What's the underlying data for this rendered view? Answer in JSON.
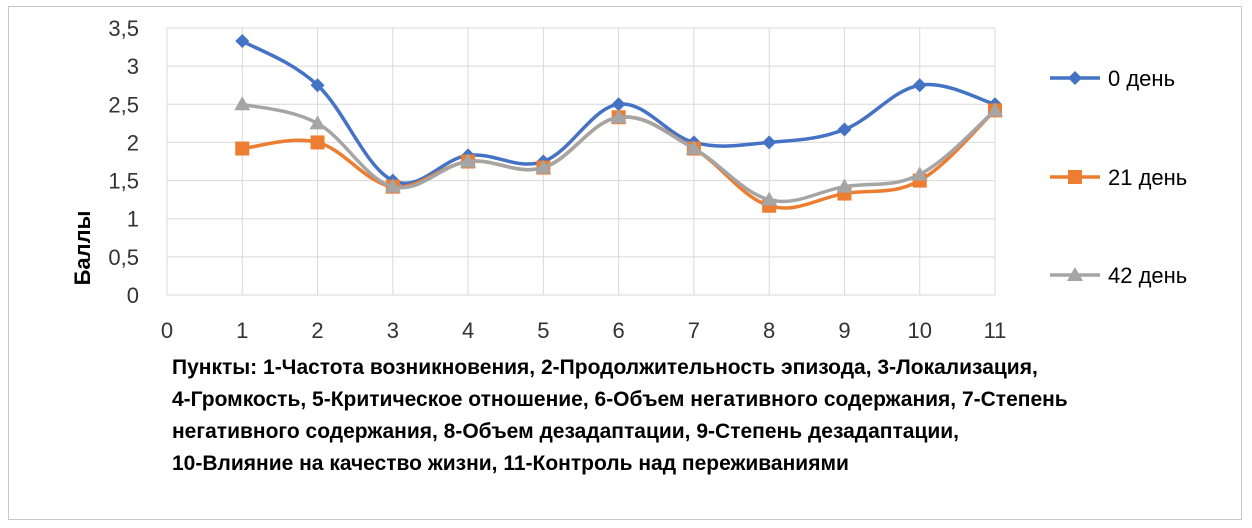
{
  "chart_data": {
    "type": "line",
    "xlabel": "",
    "ylabel": "Баллы",
    "x": [
      1,
      2,
      3,
      4,
      5,
      6,
      7,
      8,
      9,
      10,
      11
    ],
    "xlim": [
      0,
      11
    ],
    "ylim": [
      0,
      3.5
    ],
    "x_ticks": [
      "0",
      "1",
      "2",
      "3",
      "4",
      "5",
      "6",
      "7",
      "8",
      "9",
      "10",
      "11"
    ],
    "y_ticks": [
      "0",
      "0,5",
      "1",
      "1,5",
      "2",
      "2,5",
      "3",
      "3,5"
    ],
    "grid": true,
    "legend_position": "right",
    "series": [
      {
        "name": "0 день",
        "color": "#4472C4",
        "marker": "diamond",
        "values": [
          3.33,
          2.75,
          1.5,
          1.83,
          1.75,
          2.5,
          2.0,
          2.0,
          2.17,
          2.75,
          2.5
        ]
      },
      {
        "name": "21 день",
        "color": "#ED7D31",
        "marker": "square",
        "values": [
          1.92,
          2.0,
          1.42,
          1.75,
          1.67,
          2.33,
          1.92,
          1.17,
          1.33,
          1.5,
          2.42
        ]
      },
      {
        "name": "42 день",
        "color": "#A5A5A5",
        "marker": "triangle",
        "values": [
          2.5,
          2.25,
          1.42,
          1.75,
          1.67,
          2.33,
          1.92,
          1.25,
          1.42,
          1.58,
          2.42
        ]
      }
    ]
  },
  "caption_lines": [
    "Пункты: 1-Частота возникновения, 2-Продолжительность эпизода, 3-Локализация,",
    "4-Громкость, 5-Критическое отношение, 6-Объем негативного содержания, 7-Степень",
    "негативного содержания, 8-Объем дезадаптации, 9-Степень дезадаптации,",
    "10-Влияние на качество жизни, 11-Контроль над переживаниями"
  ]
}
